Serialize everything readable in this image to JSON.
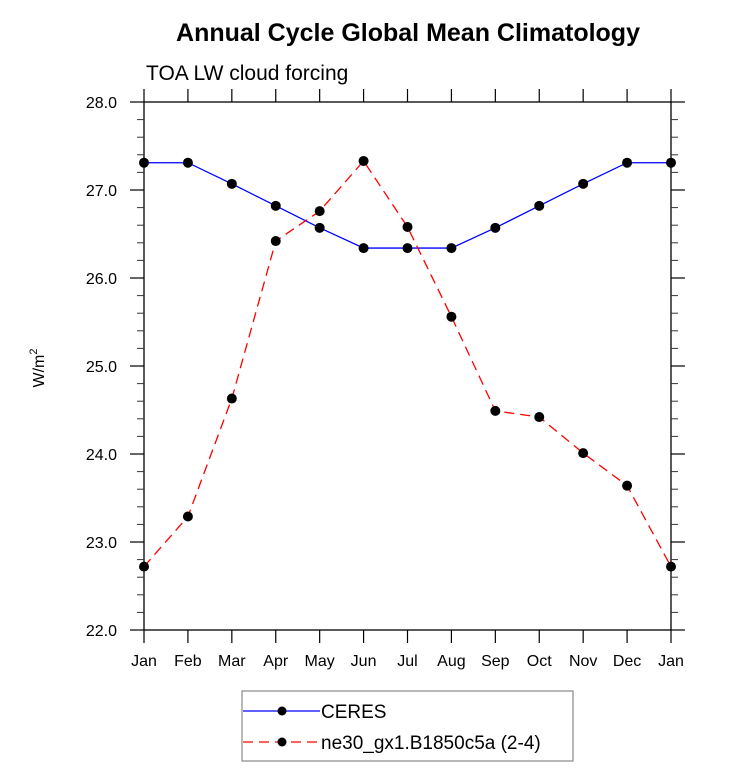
{
  "chart_data": {
    "type": "line",
    "title": "Annual Cycle Global Mean Climatology",
    "subtitle": "TOA LW cloud forcing",
    "xlabel": "",
    "ylabel": "W/m",
    "ylabel_superscript": "2",
    "categories": [
      "Jan",
      "Feb",
      "Mar",
      "Apr",
      "May",
      "Jun",
      "Jul",
      "Aug",
      "Sep",
      "Oct",
      "Nov",
      "Dec",
      "Jan"
    ],
    "ylim": [
      22.0,
      28.0
    ],
    "yticks": [
      22.0,
      23.0,
      24.0,
      25.0,
      26.0,
      27.0,
      28.0
    ],
    "ytick_labels": [
      "22.0",
      "23.0",
      "24.0",
      "25.0",
      "26.0",
      "27.0",
      "28.0"
    ],
    "y_minor_step": 0.2,
    "grid": false,
    "legend_position": "bottom-center",
    "series": [
      {
        "name": "CERES",
        "color": "#0000ff",
        "line_style": "solid",
        "marker": "filled-circle",
        "marker_color": "#000000",
        "values": [
          27.31,
          27.31,
          27.07,
          26.82,
          26.57,
          26.34,
          26.34,
          26.34,
          26.57,
          26.82,
          27.07,
          27.31,
          27.31
        ]
      },
      {
        "name": "ne30_gx1.B1850c5a (2-4)",
        "color": "#ff0000",
        "line_style": "dashed",
        "marker": "filled-circle",
        "marker_color": "#000000",
        "values": [
          22.72,
          23.29,
          24.63,
          26.42,
          26.76,
          27.33,
          26.58,
          25.56,
          24.49,
          24.42,
          24.01,
          23.64,
          22.72
        ]
      }
    ]
  }
}
